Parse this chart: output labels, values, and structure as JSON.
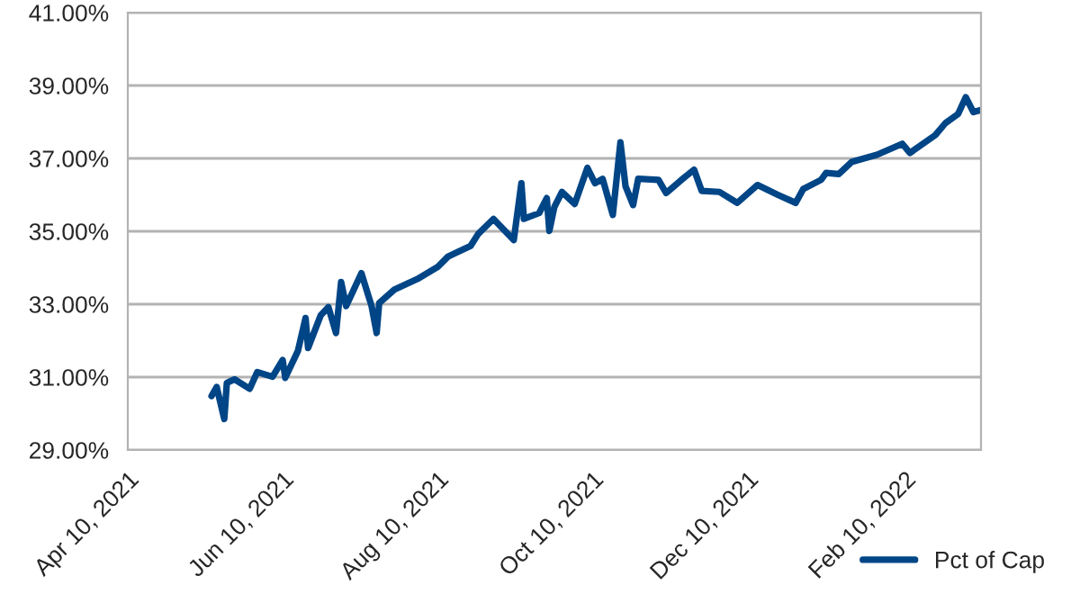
{
  "chart_data": {
    "type": "line",
    "xlim": [
      "2021-04-10",
      "2022-03-12"
    ],
    "xticks": [
      {
        "value": "2021-04-10",
        "label": "Apr 10, 2021"
      },
      {
        "value": "2021-06-10",
        "label": "Jun 10, 2021"
      },
      {
        "value": "2021-08-10",
        "label": "Aug 10, 2021"
      },
      {
        "value": "2021-10-10",
        "label": "Oct 10, 2021"
      },
      {
        "value": "2021-12-10",
        "label": "Dec 10, 2021"
      },
      {
        "value": "2022-02-10",
        "label": "Feb 10, 2022"
      }
    ],
    "ylim": [
      29,
      41
    ],
    "yticks": [
      {
        "value": 29,
        "label": "29.00%"
      },
      {
        "value": 31,
        "label": "31.00%"
      },
      {
        "value": 33,
        "label": "33.00%"
      },
      {
        "value": 35,
        "label": "35.00%"
      },
      {
        "value": 37,
        "label": "37.00%"
      },
      {
        "value": 39,
        "label": "39.00%"
      },
      {
        "value": 41,
        "label": "41.00%"
      }
    ],
    "grid": "y",
    "legend": "bottom right",
    "marker": "none",
    "line_style": "solid",
    "x": [
      "2021-05-13",
      "2021-05-15",
      "2021-05-18",
      "2021-05-19",
      "2021-05-22",
      "2021-05-28",
      "2021-05-31",
      "2021-06-06",
      "2021-06-10",
      "2021-06-11",
      "2021-06-16",
      "2021-06-19",
      "2021-06-20",
      "2021-06-25",
      "2021-06-28",
      "2021-07-01",
      "2021-07-03",
      "2021-07-05",
      "2021-07-11",
      "2021-07-15",
      "2021-07-17",
      "2021-07-18",
      "2021-07-24",
      "2021-08-02",
      "2021-08-10",
      "2021-08-14",
      "2021-08-23",
      "2021-08-26",
      "2021-09-01",
      "2021-09-09",
      "2021-09-12",
      "2021-09-13",
      "2021-09-19",
      "2021-09-22",
      "2021-09-23",
      "2021-09-25",
      "2021-09-28",
      "2021-10-03",
      "2021-10-08",
      "2021-10-11",
      "2021-10-14",
      "2021-10-18",
      "2021-10-21",
      "2021-10-23",
      "2021-10-26",
      "2021-10-28",
      "2021-11-05",
      "2021-11-08",
      "2021-11-14",
      "2021-11-19",
      "2021-11-22",
      "2021-11-29",
      "2021-12-06",
      "2021-12-14",
      "2021-12-22",
      "2021-12-29",
      "2022-01-01",
      "2022-01-08",
      "2022-01-10",
      "2022-01-15",
      "2022-01-20",
      "2022-01-24",
      "2022-01-30",
      "2022-02-09",
      "2022-02-12",
      "2022-02-22",
      "2022-02-26",
      "2022-03-03",
      "2022-03-06",
      "2022-03-09",
      "2022-03-12"
    ],
    "series": [
      {
        "name": "Pct of Cap",
        "color": "#004586",
        "values": [
          30.48,
          30.73,
          29.85,
          30.84,
          30.94,
          30.68,
          31.14,
          31.01,
          31.47,
          30.98,
          31.72,
          32.62,
          31.8,
          32.7,
          32.92,
          32.21,
          33.61,
          32.95,
          33.85,
          32.95,
          32.21,
          33.03,
          33.4,
          33.69,
          34.02,
          34.3,
          34.6,
          34.93,
          35.34,
          34.76,
          36.32,
          35.34,
          35.5,
          35.91,
          35.01,
          35.67,
          36.08,
          35.75,
          36.74,
          36.32,
          36.44,
          35.45,
          37.44,
          36.24,
          35.72,
          36.44,
          36.41,
          36.05,
          36.41,
          36.69,
          36.11,
          36.08,
          35.78,
          36.27,
          36.0,
          35.78,
          36.16,
          36.41,
          36.6,
          36.57,
          36.9,
          36.98,
          37.1,
          37.4,
          37.15,
          37.64,
          37.97,
          38.22,
          38.68,
          38.27,
          38.33
        ]
      }
    ]
  }
}
